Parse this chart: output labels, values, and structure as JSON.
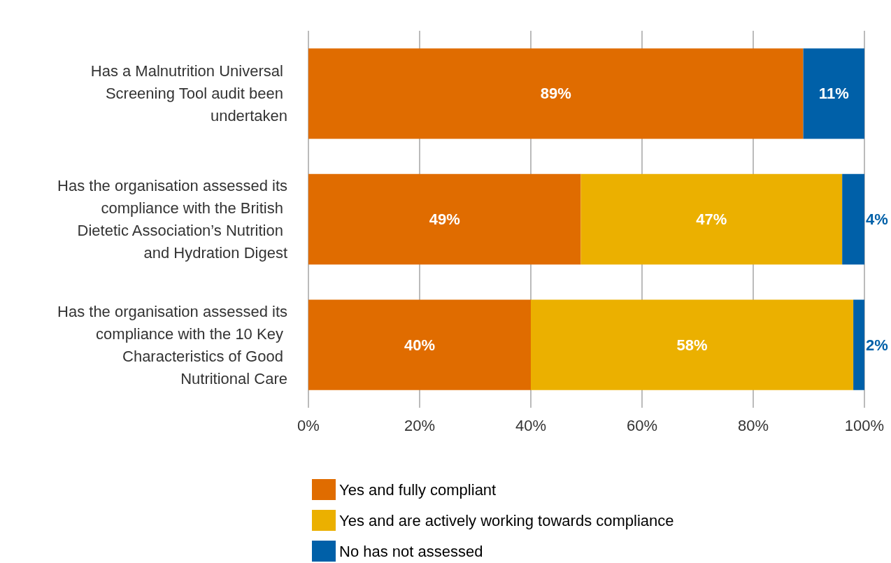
{
  "chart_data": {
    "type": "bar",
    "orientation": "horizontal",
    "stacked": true,
    "categories": [
      "Has a Malnutrition Universal Screening Tool audit been undertaken",
      "Has the organisation assessed its compliance with the British Dietetic Association’s Nutrition and Hydration Digest",
      "Has the organisation assessed its compliance with the 10 Key Characteristics of Good Nutritional Care"
    ],
    "series": [
      {
        "name": "Yes and fully compliant",
        "color": "#e06c00",
        "values": [
          89,
          49,
          40
        ],
        "value_labels": [
          "89%",
          "49%",
          "40%"
        ]
      },
      {
        "name": "Yes and are actively working towards compliance",
        "color": "#ebb000",
        "values": [
          null,
          47,
          58
        ],
        "value_labels": [
          null,
          "47%",
          "58%"
        ]
      },
      {
        "name": "No has not assessed",
        "color": "#0060a8",
        "values": [
          11,
          4,
          2
        ],
        "value_labels": [
          "11%",
          "4%",
          "2%"
        ]
      }
    ],
    "xlim": [
      0,
      100
    ],
    "xticks": [
      {
        "value": 0,
        "label": "0%"
      },
      {
        "value": 20,
        "label": "20%"
      },
      {
        "value": 40,
        "label": "40%"
      },
      {
        "value": 60,
        "label": "60%"
      },
      {
        "value": 80,
        "label": "80%"
      },
      {
        "value": 100,
        "label": "100%"
      }
    ],
    "grid": "x",
    "legend": "bottom"
  }
}
